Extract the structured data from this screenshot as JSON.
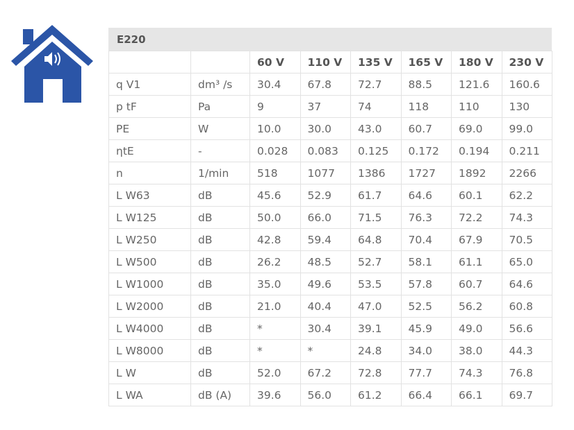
{
  "brand_color": "#2b55a7",
  "logo_icon": "house-speaker-icon",
  "table": {
    "title": "E220",
    "columns": [
      "",
      "",
      "60 V",
      "110 V",
      "135 V",
      "165 V",
      "180 V",
      "230 V"
    ],
    "rows": [
      [
        "q V1",
        "dm³ /s",
        "30.4",
        "67.8",
        "72.7",
        "88.5",
        "121.6",
        "160.6"
      ],
      [
        "p tF",
        "Pa",
        "9",
        "37",
        "74",
        "118",
        "110",
        "130"
      ],
      [
        "PE",
        "W",
        "10.0",
        "30.0",
        "43.0",
        "60.7",
        "69.0",
        "99.0"
      ],
      [
        "ηtE",
        "-",
        "0.028",
        "0.083",
        "0.125",
        "0.172",
        "0.194",
        "0.211"
      ],
      [
        "n",
        "1/min",
        "518",
        "1077",
        "1386",
        "1727",
        "1892",
        "2266"
      ],
      [
        "L W63",
        "dB",
        "45.6",
        "52.9",
        "61.7",
        "64.6",
        "60.1",
        "62.2"
      ],
      [
        "L W125",
        "dB",
        "50.0",
        "66.0",
        "71.5",
        "76.3",
        "72.2",
        "74.3"
      ],
      [
        "L W250",
        "dB",
        "42.8",
        "59.4",
        "64.8",
        "70.4",
        "67.9",
        "70.5"
      ],
      [
        "L W500",
        "dB",
        "26.2",
        "48.5",
        "52.7",
        "58.1",
        "61.1",
        "65.0"
      ],
      [
        "L W1000",
        "dB",
        "35.0",
        "49.6",
        "53.5",
        "57.8",
        "60.7",
        "64.6"
      ],
      [
        "L W2000",
        "dB",
        "21.0",
        "40.4",
        "47.0",
        "52.5",
        "56.2",
        "60.8"
      ],
      [
        "L W4000",
        "dB",
        "*",
        "30.4",
        "39.1",
        "45.9",
        "49.0",
        "56.6"
      ],
      [
        "L W8000",
        "dB",
        "*",
        "*",
        "24.8",
        "34.0",
        "38.0",
        "44.3"
      ],
      [
        "L W",
        "dB",
        "52.0",
        "67.2",
        "72.8",
        "77.7",
        "74.3",
        "76.8"
      ],
      [
        "L WA",
        "dB (A)",
        "39.6",
        "56.0",
        "61.2",
        "66.4",
        "66.1",
        "69.7"
      ]
    ]
  }
}
